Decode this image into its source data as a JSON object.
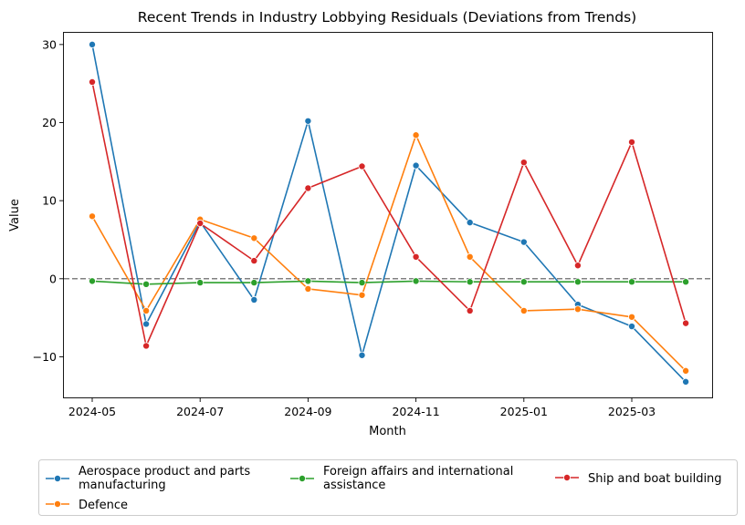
{
  "chart_data": {
    "type": "line",
    "title": "Recent Trends in Industry Lobbying Residuals (Deviations from Trends)",
    "xlabel": "Month",
    "ylabel": "Value",
    "x": [
      "2024-05",
      "2024-06",
      "2024-07",
      "2024-08",
      "2024-09",
      "2024-10",
      "2024-11",
      "2024-12",
      "2025-01",
      "2025-02",
      "2025-03",
      "2025-04"
    ],
    "x_tick_labels": [
      "2024-05",
      "2024-07",
      "2024-09",
      "2024-11",
      "2025-01",
      "2025-03"
    ],
    "y_ticks": [
      -10,
      0,
      10,
      20,
      30
    ],
    "y_tick_labels": [
      "−10",
      "0",
      "10",
      "20",
      "30"
    ],
    "ylim": [
      -15.2,
      31.5
    ],
    "reference_line": {
      "y": 0,
      "style": "dashed",
      "color": "#808080"
    },
    "grid": false,
    "legend_position": "bottom-center, below plot",
    "series": [
      {
        "name": "Aerospace product and parts manufacturing",
        "legend_lines": [
          "Aerospace product and parts",
          "manufacturing"
        ],
        "color": "#1f77b4",
        "values": [
          30.0,
          -5.8,
          7.3,
          -2.7,
          20.2,
          -9.8,
          14.5,
          7.2,
          4.7,
          -3.3,
          -6.1,
          -13.2
        ]
      },
      {
        "name": "Defence",
        "legend_lines": [
          "Defence"
        ],
        "color": "#ff7f0e",
        "values": [
          8.0,
          -4.1,
          7.6,
          5.2,
          -1.3,
          -2.1,
          18.4,
          2.8,
          -4.1,
          -3.9,
          -4.9,
          -11.8
        ]
      },
      {
        "name": "Foreign affairs and international assistance",
        "legend_lines": [
          "Foreign affairs and international",
          "assistance"
        ],
        "color": "#2ca02c",
        "values": [
          -0.3,
          -0.7,
          -0.5,
          -0.5,
          -0.3,
          -0.5,
          -0.3,
          -0.4,
          -0.4,
          -0.4,
          -0.4,
          -0.4
        ]
      },
      {
        "name": "Ship and boat building",
        "legend_lines": [
          "Ship and boat building"
        ],
        "color": "#d62728",
        "values": [
          25.2,
          -8.6,
          7.1,
          2.3,
          11.6,
          14.4,
          2.8,
          -4.1,
          14.9,
          1.7,
          17.5,
          -5.7
        ]
      }
    ]
  }
}
